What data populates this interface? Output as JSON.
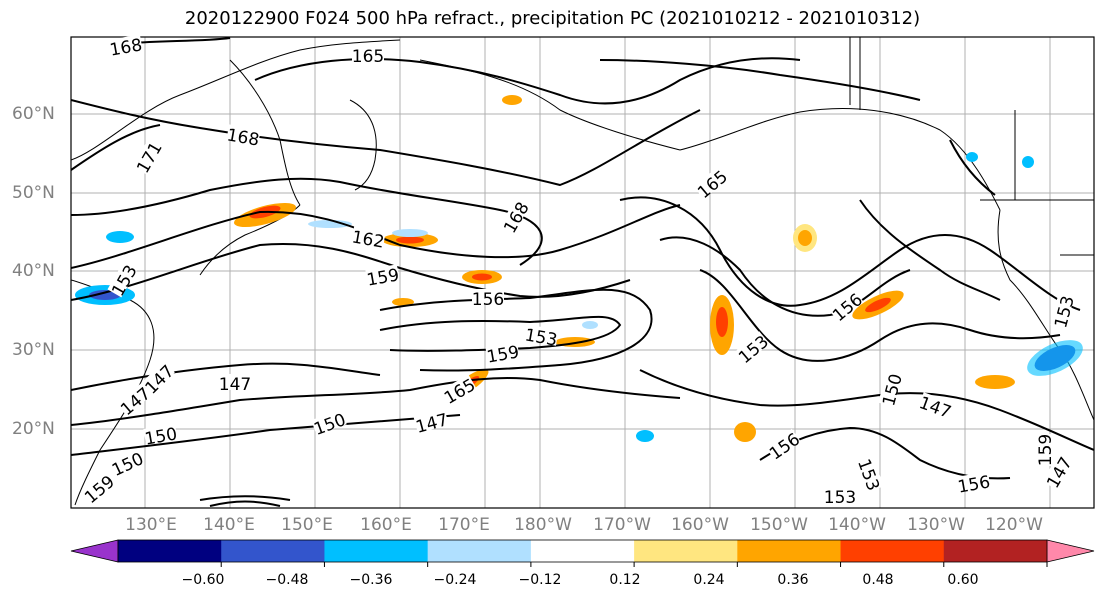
{
  "title": "2020122900 F024 500 hPa refract., precipitation PC (2021010212 - 2021010312)",
  "map": {
    "region": "North Pacific",
    "lat_labels": [
      "60°N",
      "50°N",
      "40°N",
      "30°N",
      "20°N"
    ],
    "lon_labels": [
      "130°E",
      "140°E",
      "150°E",
      "160°E",
      "170°E",
      "180°W",
      "170°W",
      "160°W",
      "150°W",
      "140°W",
      "130°W",
      "120°W"
    ],
    "contour_levels": [
      "165",
      "168",
      "171",
      "162",
      "159",
      "156",
      "153",
      "150",
      "147"
    ],
    "contour_labels": [
      {
        "text": "168"
      },
      {
        "text": "165"
      },
      {
        "text": "168"
      },
      {
        "text": "171"
      },
      {
        "text": "165"
      },
      {
        "text": "168"
      },
      {
        "text": "162"
      },
      {
        "text": "159"
      },
      {
        "text": "156"
      },
      {
        "text": "153"
      },
      {
        "text": "159"
      },
      {
        "text": "156"
      },
      {
        "text": "153"
      },
      {
        "text": "150"
      },
      {
        "text": "147"
      },
      {
        "text": "147"
      },
      {
        "text": "150"
      },
      {
        "text": "147"
      },
      {
        "text": "150"
      },
      {
        "text": "147"
      },
      {
        "text": "153"
      },
      {
        "text": "156"
      },
      {
        "text": "153"
      },
      {
        "text": "153"
      },
      {
        "text": "156"
      },
      {
        "text": "150"
      },
      {
        "text": "147"
      },
      {
        "text": "159"
      },
      {
        "text": "165"
      },
      {
        "text": "147"
      },
      {
        "text": "153"
      },
      {
        "text": "159"
      }
    ]
  },
  "colorbar": {
    "ticks": [
      "−0.60",
      "−0.48",
      "−0.36",
      "−0.24",
      "−0.12",
      "0.12",
      "0.24",
      "0.36",
      "0.48",
      "0.60"
    ],
    "colors": [
      "#9933cc",
      "#000080",
      "#3355cc",
      "#00bfff",
      "#b0e0ff",
      "#ffffff",
      "#ffe680",
      "#ffa500",
      "#ff4000",
      "#b22222",
      "#ff88aa"
    ]
  }
}
